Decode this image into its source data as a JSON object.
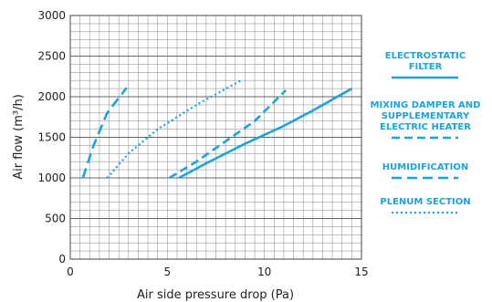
{
  "chart_data": {
    "type": "line",
    "xlabel": "Air side pressure drop (Pa)",
    "ylabel": "Air flow (m³/h)",
    "xlim": [
      0,
      15
    ],
    "ylim": [
      0,
      3000
    ],
    "x_ticks": [
      "0",
      "5",
      "10",
      "15"
    ],
    "y_ticks": [
      "0",
      "500",
      "1000",
      "1500",
      "2000",
      "2500",
      "3000"
    ],
    "grid": true,
    "legend_position": "right",
    "series": [
      {
        "name": "ELECTROSTATIC FILTER",
        "legend_lines": [
          "ELECTROSTATIC",
          "FILTER"
        ],
        "style": "solid",
        "color": "#1aa3de",
        "points": [
          [
            5.6,
            1000
          ],
          [
            7.0,
            1180
          ],
          [
            9.0,
            1420
          ],
          [
            11.0,
            1640
          ],
          [
            12.5,
            1830
          ],
          [
            14.5,
            2100
          ]
        ]
      },
      {
        "name": "MIXING DAMPER AND SUPPLEMENTARY ELECTRIC HEATER",
        "legend_lines": [
          "MIXING DAMPER AND",
          "SUPPLEMENTARY",
          "ELECTRIC HEATER"
        ],
        "style": "dashed",
        "color": "#1aa3de",
        "points": [
          [
            5.1,
            1000
          ],
          [
            6.5,
            1200
          ],
          [
            8.0,
            1450
          ],
          [
            9.5,
            1700
          ],
          [
            11.1,
            2080
          ]
        ]
      },
      {
        "name": "HUMIDIFICATION",
        "legend_lines": [
          "HUMIDIFICATION"
        ],
        "style": "longdash",
        "color": "#1aa3de",
        "points": [
          [
            0.65,
            1000
          ],
          [
            1.2,
            1400
          ],
          [
            1.9,
            1800
          ],
          [
            2.9,
            2110
          ]
        ]
      },
      {
        "name": "PLENUM SECTION",
        "legend_lines": [
          "PLENUM SECTION"
        ],
        "style": "dotted",
        "color": "#1aa3de",
        "points": [
          [
            1.9,
            1000
          ],
          [
            3.0,
            1300
          ],
          [
            4.5,
            1600
          ],
          [
            6.5,
            1900
          ],
          [
            8.8,
            2200
          ]
        ]
      }
    ]
  }
}
